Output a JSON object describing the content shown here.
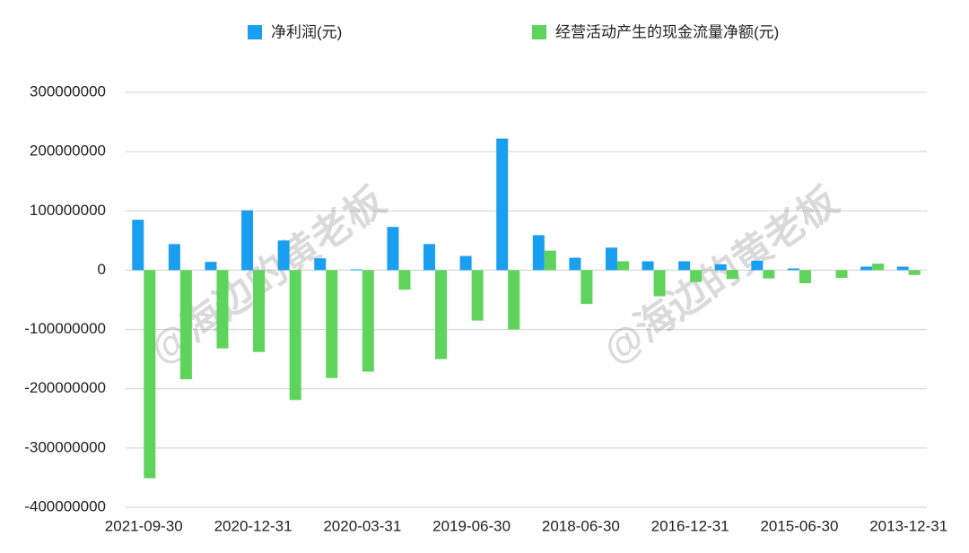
{
  "chart_data": {
    "type": "bar",
    "categories": [
      "2021-09-30",
      null,
      null,
      "2020-12-31",
      null,
      null,
      "2020-03-31",
      null,
      null,
      "2019-06-30",
      null,
      null,
      "2018-06-30",
      null,
      null,
      "2016-12-31",
      null,
      null,
      "2015-06-30",
      null,
      null,
      "2013-12-31"
    ],
    "series": [
      {
        "name": "净利润(元)",
        "color": "#1a9ff0",
        "values": [
          85000000,
          44000000,
          14000000,
          101000000,
          50000000,
          20000000,
          1500000,
          73000000,
          44000000,
          24000000,
          222000000,
          59000000,
          21000000,
          38000000,
          15000000,
          15000000,
          10000000,
          16000000,
          3000000,
          0,
          6000000,
          6000000
        ]
      },
      {
        "name": "经营活动产生的现金流量净额(元)",
        "color": "#5ed45c",
        "values": [
          -351000000,
          -184000000,
          -132000000,
          -138000000,
          -219000000,
          -182000000,
          -171000000,
          -33000000,
          -150000000,
          -85000000,
          -100000000,
          33000000,
          -57000000,
          15000000,
          -44000000,
          -20000000,
          -15000000,
          -14000000,
          -22000000,
          -13000000,
          11000000,
          -8000000
        ]
      }
    ],
    "ylim": [
      -400000000,
      300000000
    ],
    "yticks": [
      -400000000,
      -300000000,
      -200000000,
      -100000000,
      0,
      100000000,
      200000000,
      300000000
    ],
    "grid": true,
    "legend": "top",
    "watermark": "@海边的黄老板"
  }
}
